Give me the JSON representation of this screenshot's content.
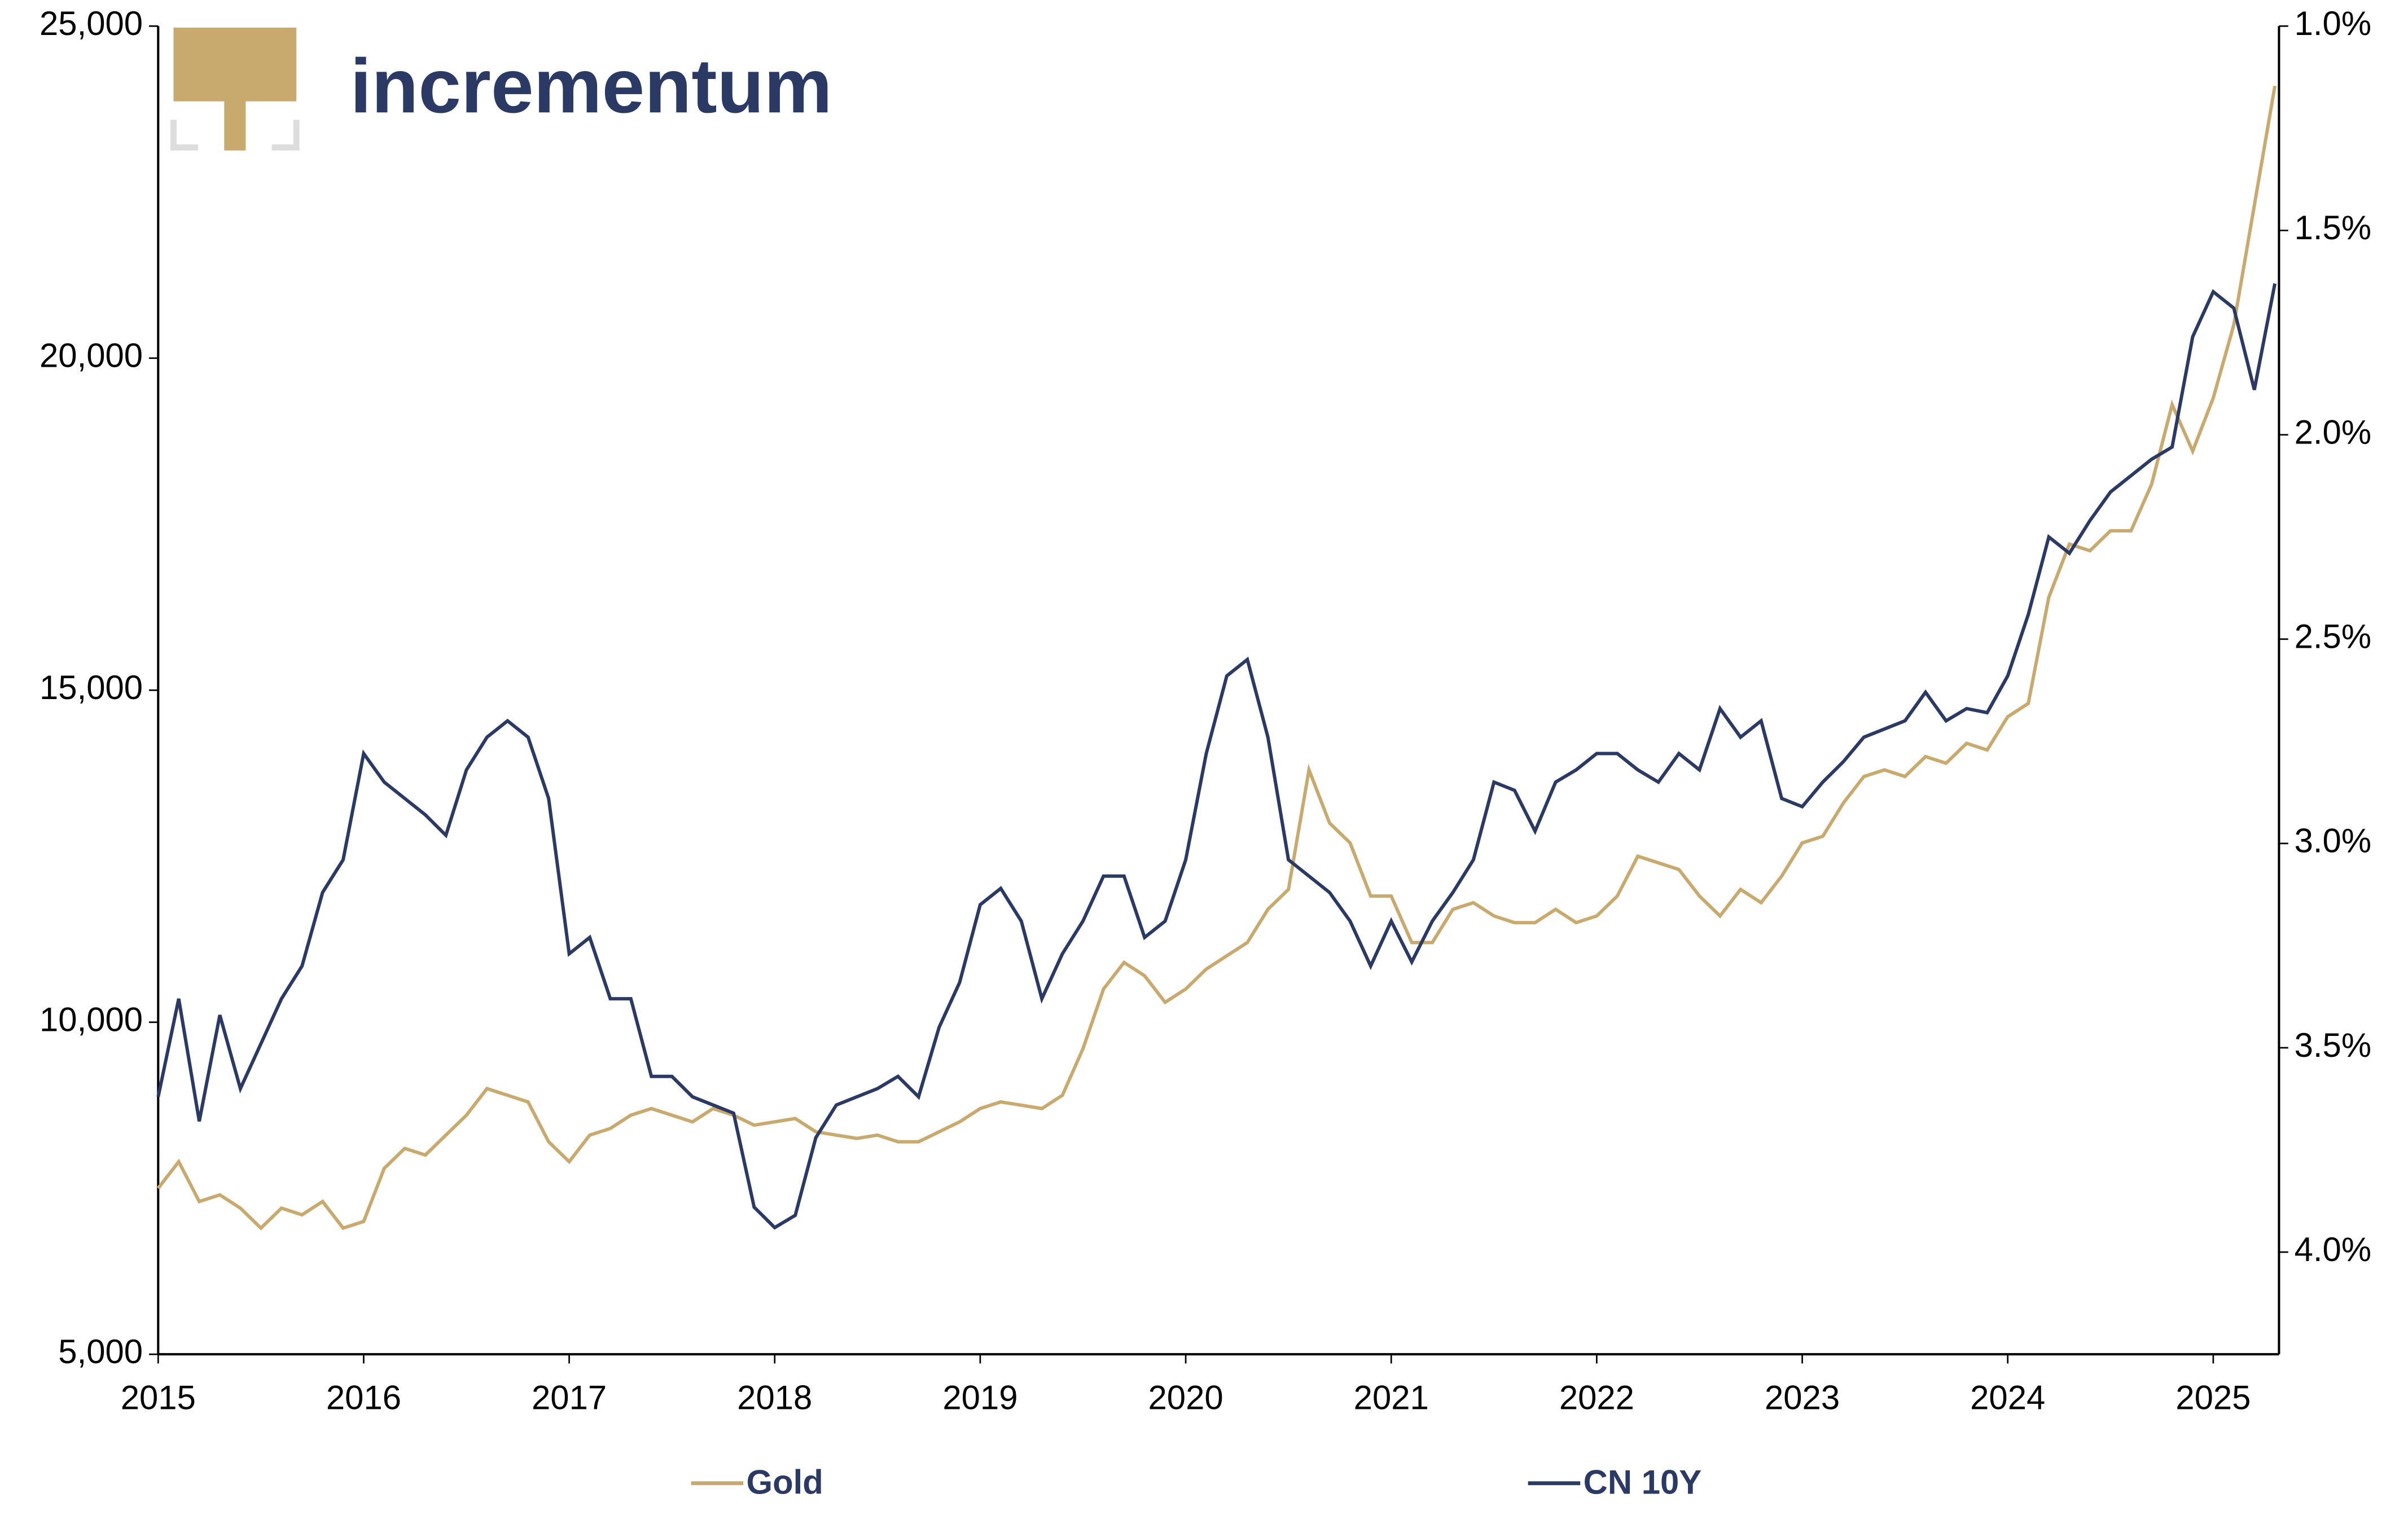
{
  "logo": "incrementum",
  "chart_data": {
    "type": "line",
    "x": [
      2015.0,
      2015.1,
      2015.2,
      2015.3,
      2015.4,
      2015.5,
      2015.6,
      2015.7,
      2015.8,
      2015.9,
      2016.0,
      2016.1,
      2016.2,
      2016.3,
      2016.4,
      2016.5,
      2016.6,
      2016.7,
      2016.8,
      2016.9,
      2017.0,
      2017.1,
      2017.2,
      2017.3,
      2017.4,
      2017.5,
      2017.6,
      2017.7,
      2017.8,
      2017.9,
      2018.0,
      2018.1,
      2018.2,
      2018.3,
      2018.4,
      2018.5,
      2018.6,
      2018.7,
      2018.8,
      2018.9,
      2019.0,
      2019.1,
      2019.2,
      2019.3,
      2019.4,
      2019.5,
      2019.6,
      2019.7,
      2019.8,
      2019.9,
      2020.0,
      2020.1,
      2020.2,
      2020.3,
      2020.4,
      2020.5,
      2020.6,
      2020.7,
      2020.8,
      2020.9,
      2021.0,
      2021.1,
      2021.2,
      2021.3,
      2021.4,
      2021.5,
      2021.6,
      2021.7,
      2021.8,
      2021.9,
      2022.0,
      2022.1,
      2022.2,
      2022.3,
      2022.4,
      2022.5,
      2022.6,
      2022.7,
      2022.8,
      2022.9,
      2023.0,
      2023.1,
      2023.2,
      2023.3,
      2023.4,
      2023.5,
      2023.6,
      2023.7,
      2023.8,
      2023.9,
      2024.0,
      2024.1,
      2024.2,
      2024.3,
      2024.4,
      2024.5,
      2024.6,
      2024.7,
      2024.8,
      2024.9,
      2025.0,
      2025.1,
      2025.2,
      2025.3
    ],
    "xlim": [
      2015,
      2025.32
    ],
    "xticks": [
      2015,
      2016,
      2017,
      2018,
      2019,
      2020,
      2021,
      2022,
      2023,
      2024,
      2025
    ],
    "ylim": [
      5000,
      25000
    ],
    "yticks": [
      {
        "value": 5000,
        "label": "5,000"
      },
      {
        "value": 10000,
        "label": "10,000"
      },
      {
        "value": 15000,
        "label": "15,000"
      },
      {
        "value": 20000,
        "label": "20,000"
      },
      {
        "value": 25000,
        "label": "25,000"
      }
    ],
    "y2lim": [
      4.25,
      1.0
    ],
    "y2ticks": [
      {
        "value": 1.0,
        "label": "1.0%"
      },
      {
        "value": 1.5,
        "label": "1.5%"
      },
      {
        "value": 2.0,
        "label": "2.0%"
      },
      {
        "value": 2.5,
        "label": "2.5%"
      },
      {
        "value": 3.0,
        "label": "3.0%"
      },
      {
        "value": 3.5,
        "label": "3.5%"
      },
      {
        "value": 4.0,
        "label": "4.0%"
      }
    ],
    "series": [
      {
        "name": "Gold",
        "color": "#c8aa6e",
        "values": [
          7500,
          7900,
          7300,
          7400,
          7200,
          6900,
          7200,
          7100,
          7300,
          6900,
          7000,
          7800,
          8100,
          8000,
          8300,
          8600,
          9000,
          8900,
          8800,
          8200,
          7900,
          8300,
          8400,
          8600,
          8700,
          8600,
          8500,
          8700,
          8600,
          8450,
          8500,
          8550,
          8350,
          8300,
          8250,
          8300,
          8200,
          8200,
          8350,
          8500,
          8700,
          8800,
          8750,
          8700,
          8900,
          9600,
          10500,
          10900,
          10700,
          10300,
          10500,
          10800,
          11000,
          11200,
          11700,
          12000,
          13800,
          13000,
          12700,
          11900,
          11900,
          11200,
          11200,
          11700,
          11800,
          11600,
          11500,
          11500,
          11700,
          11500,
          11600,
          11900,
          12500,
          12400,
          12300,
          11900,
          11600,
          12000,
          11800,
          12200,
          12700,
          12800,
          13300,
          13700,
          13800,
          13700,
          14000,
          13900,
          14200,
          14100,
          14600,
          14800,
          16400,
          17200,
          17100,
          17400,
          17400,
          18100,
          19300,
          18600,
          19400,
          20500,
          22300,
          24100
        ]
      },
      {
        "name": "CN 10Y",
        "color": "#2b3a64",
        "axis": "y2",
        "values": [
          3.62,
          3.38,
          3.68,
          3.42,
          3.6,
          3.49,
          3.38,
          3.3,
          3.12,
          3.04,
          2.78,
          2.85,
          2.89,
          2.93,
          2.98,
          2.82,
          2.74,
          2.7,
          2.74,
          2.89,
          3.27,
          3.23,
          3.38,
          3.38,
          3.57,
          3.57,
          3.62,
          3.64,
          3.66,
          3.89,
          3.94,
          3.91,
          3.72,
          3.64,
          3.62,
          3.6,
          3.57,
          3.62,
          3.45,
          3.34,
          3.15,
          3.11,
          3.19,
          3.38,
          3.27,
          3.19,
          3.08,
          3.08,
          3.23,
          3.19,
          3.04,
          2.78,
          2.59,
          2.55,
          2.74,
          3.04,
          3.08,
          3.12,
          3.19,
          3.3,
          3.19,
          3.29,
          3.19,
          3.12,
          3.04,
          2.85,
          2.87,
          2.97,
          2.85,
          2.82,
          2.78,
          2.78,
          2.82,
          2.85,
          2.78,
          2.82,
          2.67,
          2.74,
          2.7,
          2.89,
          2.91,
          2.85,
          2.8,
          2.74,
          2.72,
          2.7,
          2.63,
          2.7,
          2.67,
          2.68,
          2.59,
          2.44,
          2.25,
          2.29,
          2.21,
          2.14,
          2.1,
          2.06,
          2.03,
          1.76,
          1.65,
          1.69,
          1.89,
          1.63
        ]
      }
    ]
  }
}
